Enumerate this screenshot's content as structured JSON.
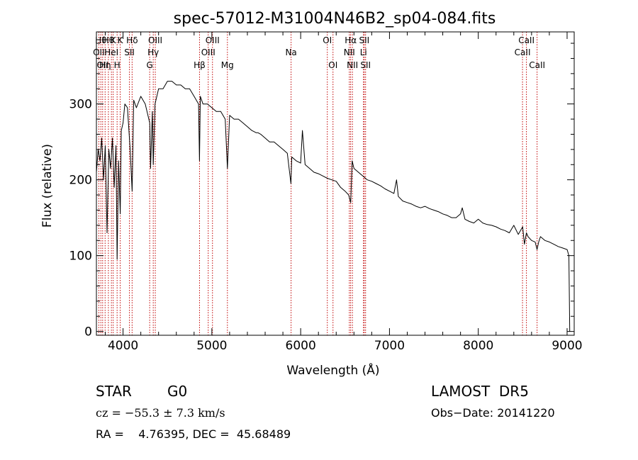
{
  "chart_data": {
    "type": "line",
    "title": "spec-57012-M31004N46B2_sp04-084.fits",
    "xlabel": "Wavelength (Å)",
    "ylabel": "Flux (relative)",
    "xlim": [
      3700,
      9080
    ],
    "ylim": [
      -5,
      395
    ],
    "xticks": [
      4000,
      5000,
      6000,
      7000,
      8000,
      9000
    ],
    "yticks": [
      0,
      100,
      200,
      300
    ],
    "series": [
      {
        "x": [
          3700,
          3720,
          3740,
          3760,
          3780,
          3800,
          3820,
          3840,
          3860,
          3880,
          3900,
          3920,
          3933,
          3950,
          3968,
          3980,
          4000,
          4020,
          4050,
          4080,
          4102,
          4120,
          4150,
          4200,
          4250,
          4300,
          4310,
          4330,
          4340,
          4360,
          4400,
          4450,
          4500,
          4550,
          4600,
          4650,
          4700,
          4750,
          4800,
          4850,
          4861,
          4870,
          4900,
          4950,
          5000,
          5050,
          5100,
          5150,
          5175,
          5200,
          5250,
          5300,
          5350,
          5400,
          5450,
          5500,
          5520,
          5550,
          5600,
          5650,
          5700,
          5750,
          5800,
          5850,
          5890,
          5900,
          5950,
          6000,
          6020,
          6050,
          6100,
          6150,
          6200,
          6250,
          6300,
          6350,
          6400,
          6450,
          6500,
          6540,
          6563,
          6580,
          6600,
          6650,
          6700,
          6750,
          6800,
          6850,
          6900,
          6950,
          7000,
          7050,
          7080,
          7100,
          7150,
          7200,
          7250,
          7300,
          7350,
          7400,
          7450,
          7500,
          7550,
          7600,
          7650,
          7700,
          7750,
          7800,
          7820,
          7850,
          7900,
          7950,
          8000,
          8050,
          8100,
          8150,
          8200,
          8250,
          8300,
          8350,
          8400,
          8450,
          8500,
          8520,
          8542,
          8560,
          8600,
          8640,
          8662,
          8680,
          8700,
          8750,
          8800,
          8850,
          8900,
          8950,
          9000,
          9020,
          9030
        ],
        "y": [
          210,
          240,
          225,
          255,
          200,
          245,
          130,
          240,
          215,
          255,
          190,
          245,
          95,
          225,
          155,
          265,
          275,
          300,
          295,
          240,
          185,
          305,
          295,
          310,
          300,
          275,
          215,
          290,
          220,
          300,
          320,
          320,
          330,
          330,
          325,
          325,
          320,
          320,
          310,
          300,
          225,
          310,
          300,
          300,
          295,
          290,
          290,
          280,
          215,
          285,
          280,
          280,
          275,
          270,
          265,
          262,
          262,
          260,
          255,
          250,
          250,
          245,
          240,
          235,
          195,
          230,
          225,
          222,
          265,
          220,
          215,
          210,
          208,
          205,
          202,
          200,
          198,
          190,
          185,
          180,
          170,
          225,
          215,
          210,
          205,
          200,
          198,
          195,
          192,
          188,
          185,
          182,
          200,
          178,
          172,
          170,
          168,
          165,
          163,
          165,
          162,
          160,
          158,
          155,
          153,
          150,
          150,
          155,
          163,
          148,
          145,
          143,
          148,
          143,
          141,
          140,
          138,
          135,
          133,
          130,
          140,
          128,
          138,
          115,
          130,
          125,
          120,
          118,
          108,
          118,
          125,
          120,
          118,
          115,
          112,
          110,
          108,
          100,
          0
        ]
      }
    ],
    "lines": [
      {
        "x": 3727,
        "label": "OII",
        "row": 2
      },
      {
        "x": 3750,
        "label": "Hθ",
        "row": 1
      },
      {
        "x": 3770,
        "label": "OII",
        "row": 3
      },
      {
        "x": 3798,
        "label": "Hη",
        "row": 3
      },
      {
        "x": 3835,
        "label": "Hθ",
        "row": 1
      },
      {
        "x": 3869,
        "label": "HeI",
        "row": 2
      },
      {
        "x": 3889,
        "label": "K",
        "row": 1
      },
      {
        "x": 3933,
        "label": "H",
        "row": 3
      },
      {
        "x": 3968,
        "label": "K",
        "row": 1
      },
      {
        "x": 4072,
        "label": "SII",
        "row": 2
      },
      {
        "x": 4102,
        "label": "Hδ",
        "row": 1
      },
      {
        "x": 4300,
        "label": "G",
        "row": 3
      },
      {
        "x": 4340,
        "label": "Hγ",
        "row": 2
      },
      {
        "x": 4363,
        "label": "OIII",
        "row": 1
      },
      {
        "x": 4861,
        "label": "Hβ",
        "row": 3
      },
      {
        "x": 4959,
        "label": "OIII",
        "row": 2
      },
      {
        "x": 5007,
        "label": "OIII",
        "row": 1
      },
      {
        "x": 5175,
        "label": "Mg",
        "row": 3
      },
      {
        "x": 5892,
        "label": "Na",
        "row": 2
      },
      {
        "x": 6300,
        "label": "OI",
        "row": 1
      },
      {
        "x": 6364,
        "label": "OI",
        "row": 3
      },
      {
        "x": 6548,
        "label": "NII",
        "row": 2
      },
      {
        "x": 6563,
        "label": "Hα",
        "row": 1
      },
      {
        "x": 6583,
        "label": "NII",
        "row": 3
      },
      {
        "x": 6707,
        "label": "Li",
        "row": 2
      },
      {
        "x": 6716,
        "label": "SII",
        "row": 1
      },
      {
        "x": 6731,
        "label": "SII",
        "row": 3
      },
      {
        "x": 8498,
        "label": "CaII",
        "row": 2
      },
      {
        "x": 8542,
        "label": "CaII",
        "row": 1
      },
      {
        "x": 8662,
        "label": "CaII",
        "row": 3
      }
    ]
  },
  "info": {
    "object_class": "STAR",
    "subclass": "G0",
    "survey": "LAMOST  DR5",
    "cz": "cz = −55.3 ± 7.3 km/s",
    "obs_date": "Obs−Date: 20141220",
    "coords": "RA =    4.76395, DEC =  45.68489"
  },
  "colors": {
    "spectrum": "#000000",
    "line_marker": "#c00000",
    "axes": "#000000"
  }
}
